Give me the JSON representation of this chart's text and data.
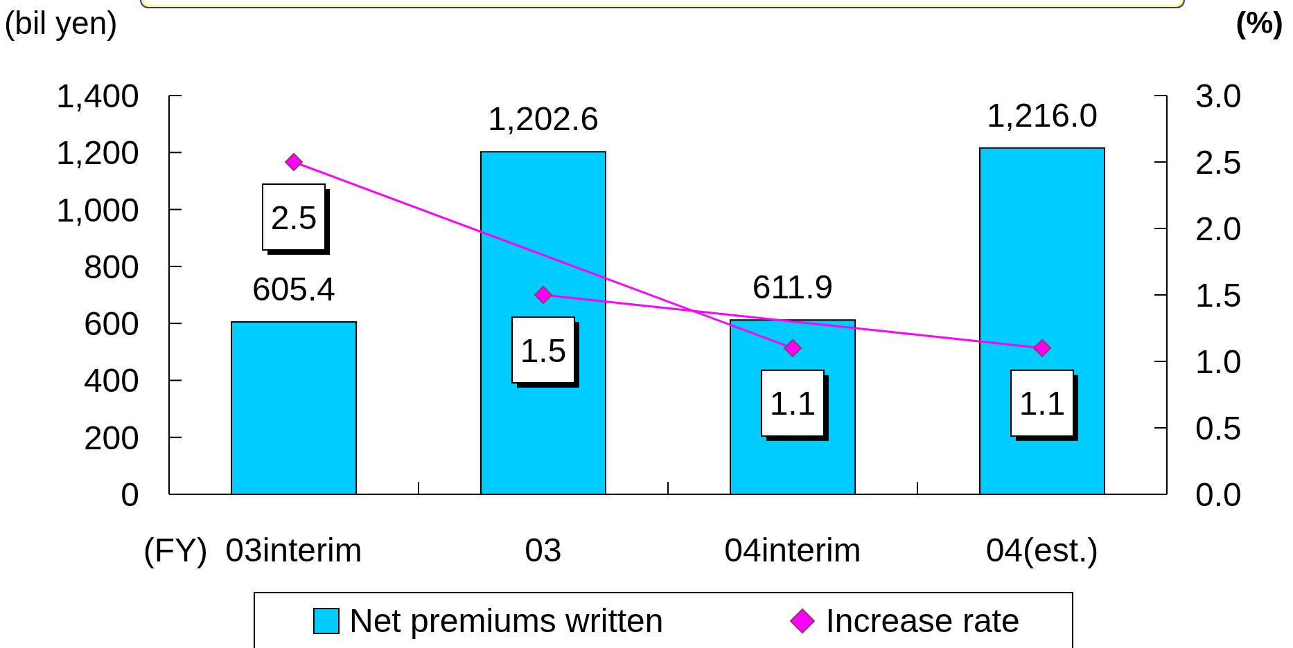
{
  "chart_data": {
    "type": "bar",
    "ylabel": "(bil yen)",
    "y2label": "(%)",
    "xlabel": "(FY)",
    "categories": [
      "03interim",
      "03",
      "04interim",
      "04(est.)"
    ],
    "series": [
      {
        "name": "Net premiums written",
        "color": "#00ccff",
        "values": [
          605.4,
          1202.6,
          611.9,
          1216.0
        ],
        "value_labels": [
          "605.4",
          "1,202.6",
          "611.9",
          "1,216.0"
        ]
      },
      {
        "name": "Increase rate",
        "type": "line",
        "axis": "y2",
        "color": "#ff00ff",
        "x": [
          "03interim",
          "04interim"
        ],
        "values": [
          2.5,
          1.1
        ],
        "value_labels": [
          "2.5",
          "1.1"
        ]
      },
      {
        "type": "line",
        "axis": "y2",
        "color": "#ff00ff",
        "x": [
          "03",
          "04(est.)"
        ],
        "values": [
          1.5,
          1.1
        ],
        "value_labels": [
          "1.5",
          "1.1"
        ]
      }
    ],
    "ylim": [
      0,
      1400
    ],
    "yticks": [
      0,
      200,
      400,
      600,
      800,
      {
        "value": 1000,
        "label": "1,000"
      },
      {
        "value": 1200,
        "label": "1,200"
      },
      {
        "value": 1400,
        "label": "1,400"
      }
    ],
    "y2lim": [
      0,
      3
    ],
    "y2ticks": [
      {
        "value": 0,
        "label": "0.0"
      },
      0.5,
      {
        "value": 1,
        "label": "1.0"
      },
      1.5,
      {
        "value": 2,
        "label": "2.0"
      },
      2.5,
      {
        "value": 3,
        "label": "3.0"
      }
    ],
    "legend": "bottom",
    "marker": "diamond",
    "line_style": "solid"
  }
}
